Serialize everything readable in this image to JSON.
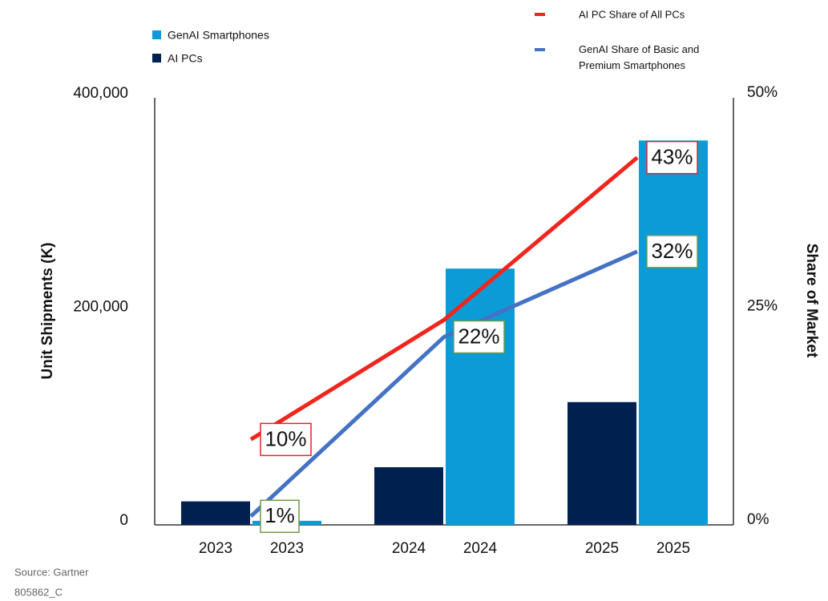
{
  "chart_data": {
    "type": "bar",
    "categories": [
      "2023",
      "2024",
      "2025"
    ],
    "series": [
      {
        "name": "AI PCs",
        "color": "#002050",
        "values": [
          22000,
          54000,
          115000
        ]
      },
      {
        "name": "GenAI Smartphones",
        "color": "#0b9bd6",
        "values": [
          3800,
          240000,
          360000
        ]
      },
      {
        "name": "AI PC Share of All PCs",
        "type": "line",
        "axis": "y2",
        "color": "#f0251c",
        "values": [
          10,
          24,
          43
        ],
        "value_labels": [
          "10%",
          null,
          "43%"
        ]
      },
      {
        "name": "GenAI Share of Basic and Premium Smartphones",
        "type": "line",
        "axis": "y2",
        "color": "#4472c4",
        "values": [
          1,
          22,
          32
        ],
        "value_labels": [
          "1%",
          "22%",
          "32%"
        ]
      }
    ],
    "ylabel": "Unit Shipments (K)",
    "y2label": "Share of Market",
    "ylim": [
      0,
      400000
    ],
    "yticks": [
      0,
      {
        "value": 200000,
        "label": "200,000"
      },
      {
        "value": 400000,
        "label": "400,000"
      }
    ],
    "y2lim": [
      0,
      50
    ],
    "y2ticks": [
      {
        "value": 0,
        "label": "0%"
      },
      {
        "value": 25,
        "label": "25%"
      },
      {
        "value": 50,
        "label": "50%"
      }
    ],
    "source": "Source: Gartner",
    "code": "805862_C"
  }
}
